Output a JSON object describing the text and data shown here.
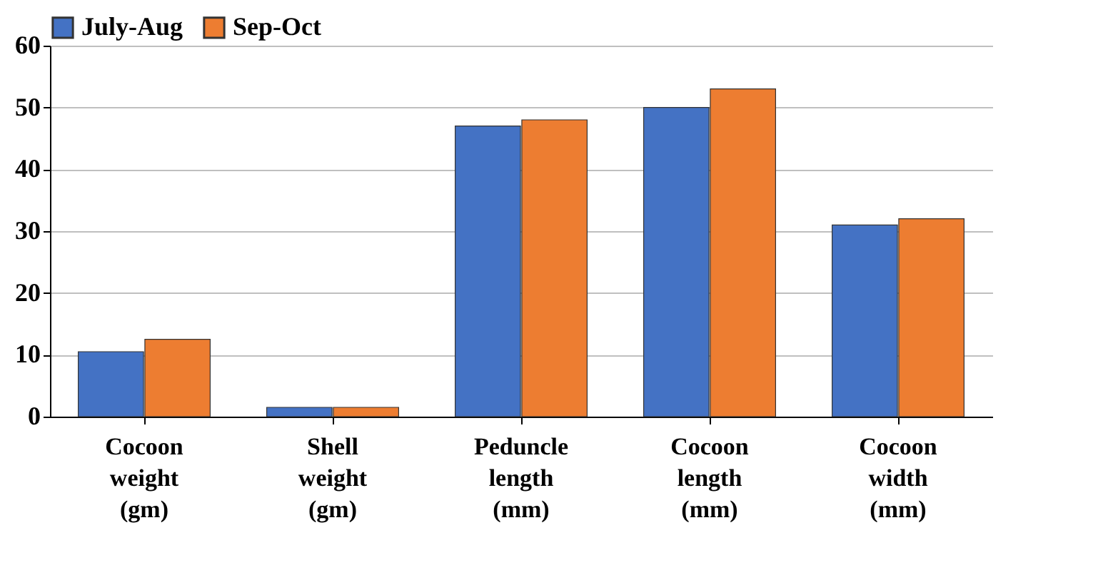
{
  "chart_data": {
    "type": "bar",
    "categories": [
      "Cocoon weight (gm)",
      "Shell weight (gm)",
      "Peduncle length (mm)",
      "Cocoon length (mm)",
      "Cocoon width (mm)"
    ],
    "series": [
      {
        "name": "July-Aug",
        "color": "#4472c4",
        "values": [
          10.5,
          1.5,
          47,
          50,
          31
        ]
      },
      {
        "name": "Sep-Oct",
        "color": "#ed7d31",
        "values": [
          12.5,
          1.5,
          48,
          53,
          32
        ]
      }
    ],
    "ylim": [
      0,
      60
    ],
    "yticks": [
      0,
      10,
      20,
      30,
      40,
      50,
      60
    ],
    "grid": "y",
    "legend": "top"
  }
}
